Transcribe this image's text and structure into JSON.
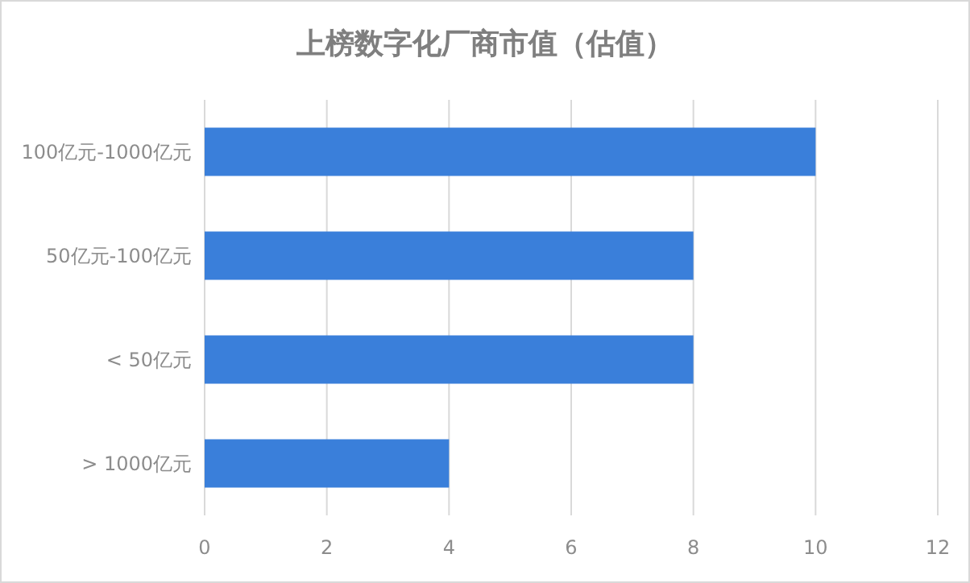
{
  "chart_data": {
    "type": "bar",
    "orientation": "horizontal",
    "title": "上榜数字化厂商市值（估值）",
    "categories": [
      "100亿元-1000亿元",
      "50亿元-100亿元",
      "< 50亿元",
      "> 1000亿元"
    ],
    "values": [
      10,
      8,
      8,
      4
    ],
    "color": "#3a7fda",
    "xlim": [
      0,
      12
    ],
    "xticks": [
      0,
      2,
      4,
      6,
      8,
      10,
      12
    ],
    "grid": "x"
  }
}
